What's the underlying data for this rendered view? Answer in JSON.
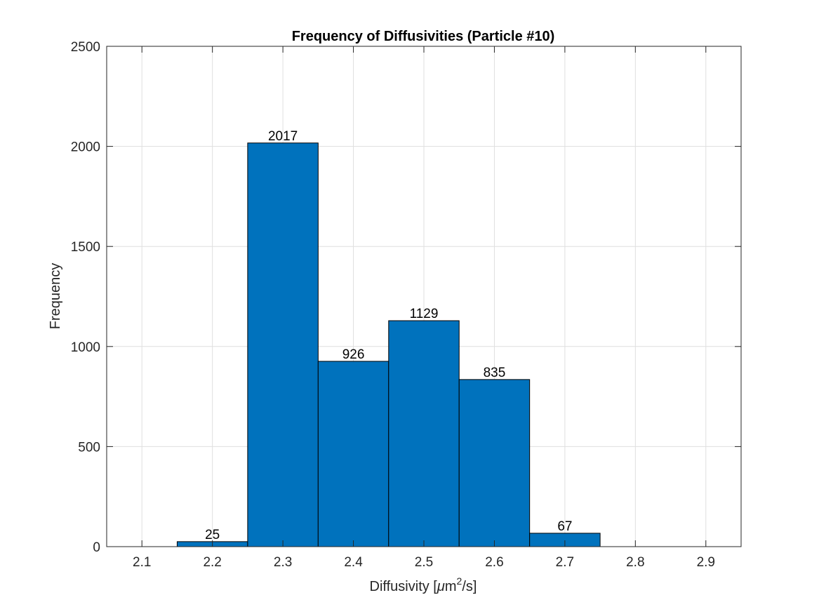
{
  "chart_data": {
    "type": "bar",
    "title": "Frequency of Diffusivities (Particle #10)",
    "xlabel": {
      "prefix": "Diffusivity [",
      "mu": "μ",
      "unit": "m",
      "sup": "2",
      "suffix": "/s]"
    },
    "ylabel": "Frequency",
    "xlim": [
      2.05,
      2.95
    ],
    "ylim": [
      0,
      2500
    ],
    "xticks": [
      "2.1",
      "2.2",
      "2.3",
      "2.4",
      "2.5",
      "2.6",
      "2.7",
      "2.8",
      "2.9"
    ],
    "yticks": [
      "0",
      "500",
      "1000",
      "1500",
      "2000",
      "2500"
    ],
    "bars": [
      {
        "x": 2.2,
        "value": 25,
        "label": "25"
      },
      {
        "x": 2.3,
        "value": 2017,
        "label": "2017"
      },
      {
        "x": 2.4,
        "value": 926,
        "label": "926"
      },
      {
        "x": 2.5,
        "value": 1129,
        "label": "1129"
      },
      {
        "x": 2.6,
        "value": 835,
        "label": "835"
      },
      {
        "x": 2.7,
        "value": 67,
        "label": "67"
      }
    ],
    "bar_color": "#0072bd",
    "grid": true
  }
}
